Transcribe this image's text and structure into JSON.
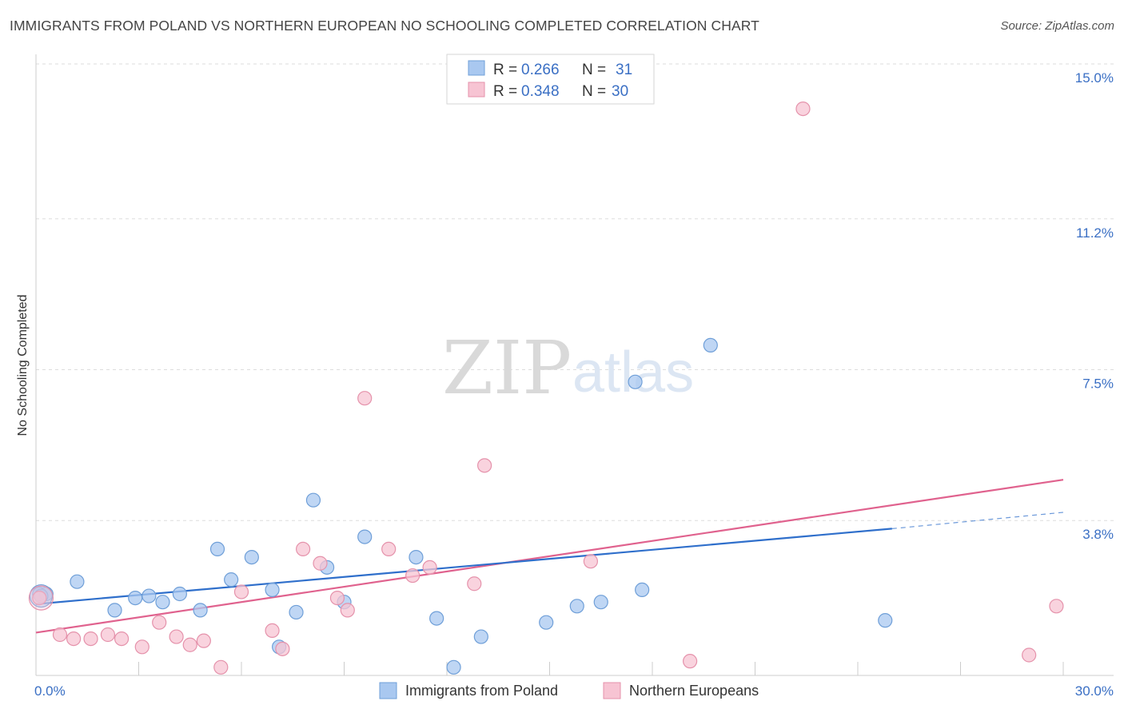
{
  "title": "IMMIGRANTS FROM POLAND VS NORTHERN EUROPEAN NO SCHOOLING COMPLETED CORRELATION CHART",
  "source": "Source: ZipAtlas.com",
  "watermark": {
    "zip": "ZIP",
    "atlas": "atlas"
  },
  "legend": {
    "rows": [
      {
        "r_label": "R =",
        "r_value": "0.266",
        "n_label": "N =",
        "n_value": "31",
        "color": "#a9c8f0",
        "stroke": "#6f9fd8"
      },
      {
        "r_label": "R =",
        "r_value": "0.348",
        "n_label": "N =",
        "n_value": "30",
        "color": "#f7c4d3",
        "stroke": "#e592ab"
      }
    ]
  },
  "bottom_legend": {
    "poland": "Immigrants from Poland",
    "northern": "Northern Europeans"
  },
  "chart_data": {
    "type": "scatter",
    "title": "IMMIGRANTS FROM POLAND VS NORTHERN EUROPEAN NO SCHOOLING COMPLETED CORRELATION CHART",
    "xlabel": "",
    "ylabel": "No Schooling Completed",
    "xlim": [
      0,
      30
    ],
    "ylim": [
      0,
      15.5
    ],
    "x_tick_labels": [
      {
        "value": 0,
        "label": "0.0%"
      },
      {
        "value": 30,
        "label": "30.0%"
      }
    ],
    "y_tick_labels": [
      {
        "value": 3.8,
        "label": "3.8%"
      },
      {
        "value": 7.5,
        "label": "7.5%"
      },
      {
        "value": 11.2,
        "label": "11.2%"
      },
      {
        "value": 15.0,
        "label": "15.0%"
      }
    ],
    "series": [
      {
        "name": "Immigrants from Poland",
        "color": "#a9c8f0",
        "stroke": "#6f9fd8",
        "line_color": "#2f6fcb",
        "trend": {
          "x0": 0,
          "y0": 1.75,
          "x1": 25,
          "y1": 3.6,
          "dash_to_x": 30,
          "dash_to_y": 4.0
        },
        "points": [
          [
            0.1,
            2.0
          ],
          [
            0.3,
            2.0
          ],
          [
            1.2,
            2.3
          ],
          [
            2.3,
            1.6
          ],
          [
            2.9,
            1.9
          ],
          [
            3.3,
            1.95
          ],
          [
            3.7,
            1.8
          ],
          [
            4.2,
            2.0
          ],
          [
            4.8,
            1.6
          ],
          [
            5.3,
            3.1
          ],
          [
            5.7,
            2.35
          ],
          [
            6.3,
            2.9
          ],
          [
            6.9,
            2.1
          ],
          [
            7.1,
            0.7
          ],
          [
            7.6,
            1.55
          ],
          [
            8.1,
            4.3
          ],
          [
            8.5,
            2.65
          ],
          [
            9.0,
            1.8
          ],
          [
            9.6,
            3.4
          ],
          [
            11.1,
            2.9
          ],
          [
            11.7,
            1.4
          ],
          [
            12.2,
            0.2
          ],
          [
            13.0,
            0.95
          ],
          [
            14.9,
            1.3
          ],
          [
            15.8,
            1.7
          ],
          [
            16.5,
            1.8
          ],
          [
            17.5,
            7.2
          ],
          [
            17.7,
            2.1
          ],
          [
            19.7,
            8.1
          ],
          [
            24.8,
            1.35
          ],
          [
            0.15,
            1.95
          ]
        ]
      },
      {
        "name": "Northern Europeans",
        "color": "#f7c4d3",
        "stroke": "#e592ab",
        "line_color": "#e0628e",
        "trend": {
          "x0": 0,
          "y0": 1.05,
          "x1": 30,
          "y1": 4.8
        },
        "points": [
          [
            0.1,
            1.9
          ],
          [
            0.7,
            1.0
          ],
          [
            1.1,
            0.9
          ],
          [
            1.6,
            0.9
          ],
          [
            2.1,
            1.0
          ],
          [
            2.5,
            0.9
          ],
          [
            3.1,
            0.7
          ],
          [
            3.6,
            1.3
          ],
          [
            4.1,
            0.95
          ],
          [
            4.5,
            0.75
          ],
          [
            4.9,
            0.85
          ],
          [
            5.4,
            0.2
          ],
          [
            6.0,
            2.05
          ],
          [
            6.9,
            1.1
          ],
          [
            7.2,
            0.65
          ],
          [
            7.8,
            3.1
          ],
          [
            8.3,
            2.75
          ],
          [
            8.8,
            1.9
          ],
          [
            9.1,
            1.6
          ],
          [
            9.6,
            6.8
          ],
          [
            10.3,
            3.1
          ],
          [
            11.0,
            2.45
          ],
          [
            11.5,
            2.65
          ],
          [
            12.8,
            2.25
          ],
          [
            13.1,
            5.15
          ],
          [
            16.2,
            2.8
          ],
          [
            19.1,
            0.35
          ],
          [
            22.4,
            13.9
          ],
          [
            29.0,
            0.5
          ],
          [
            29.8,
            1.7
          ]
        ]
      }
    ]
  }
}
